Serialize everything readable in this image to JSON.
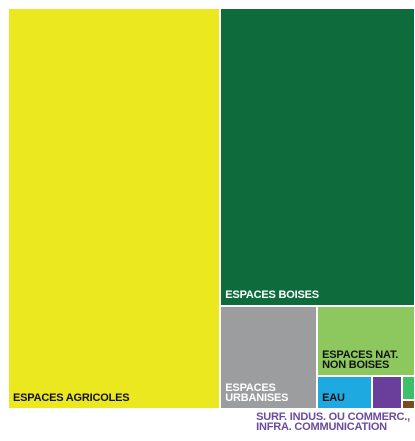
{
  "chart_data": {
    "type": "treemap",
    "categories": [
      "ESPACES AGRICOLES",
      "ESPACES BOISES",
      "ESPACES\nURBANISES",
      "ESPACES NAT.\nNON BOISES",
      "EAU",
      "SURF. INDUS. OU COMMERC.,\nINFRA. COMMUNICATION",
      null,
      null
    ],
    "values": [
      52.2,
      35.6,
      6.1,
      4.2,
      1.1,
      0.6,
      0.2,
      0.07
    ],
    "colors": [
      "#ebe81f",
      "#0e6b3c",
      "#9c9d9f",
      "#8dc85e",
      "#1fa9e1",
      "#6a3f9c",
      "#3fbf6b",
      "#7b4a1f"
    ],
    "label_colors": [
      "#111111",
      "#ffffff",
      "#ffffff",
      "#111111",
      "#111111",
      "#6a4c9c",
      null,
      null
    ]
  }
}
